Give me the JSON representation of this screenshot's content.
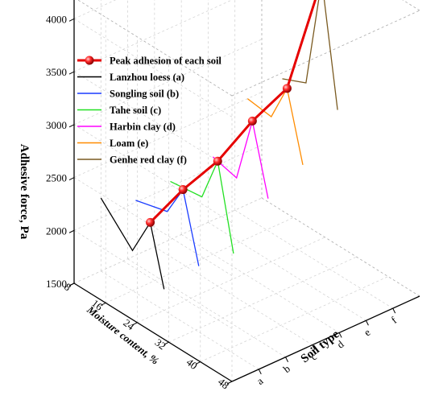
{
  "chart_data": {
    "type": "line",
    "projection": "3d",
    "zlabel": "Adhesive force,  Pa",
    "xlabel": "Moisture content,  %",
    "ylabel": "Soil type",
    "z_ticks": [
      "1500",
      "2000",
      "2500",
      "3000",
      "3500",
      "4000"
    ],
    "x_ticks": [
      "8",
      "16",
      "24",
      "32",
      "40",
      "48"
    ],
    "y_ticks": [
      "a",
      "b",
      "c",
      "d",
      "e",
      "f"
    ],
    "zlim": [
      1500,
      4200
    ],
    "xlim": [
      8,
      48
    ],
    "legend_position": "top-left",
    "colors": {
      "peak": "#e60000",
      "a": "#000000",
      "b": "#1a3cff",
      "c": "#22e022",
      "d": "#ff00ff",
      "e": "#ff8c00",
      "f": "#7a5a20"
    },
    "series": [
      {
        "name": "Peak adhesion of each soil",
        "soil": [
          "a",
          "b",
          "c",
          "d",
          "e",
          "f"
        ],
        "moisture": [
          20.5,
          22,
          24,
          26,
          28,
          30
        ],
        "values": [
          2250,
          2480,
          2680,
          2990,
          3230,
          4190
        ]
      },
      {
        "name": "Lanzhou loess (a)",
        "soil": "a",
        "moisture": [
          8,
          16,
          20.5,
          24
        ],
        "values": [
          2190,
          1880,
          2250,
          1700
        ]
      },
      {
        "name": "Songling soil (b)",
        "soil": "b",
        "moisture": [
          10,
          18,
          22,
          26
        ],
        "values": [
          2100,
          2180,
          2480,
          1850
        ]
      },
      {
        "name": "Tahe soil (c)",
        "soil": "c",
        "moisture": [
          12,
          20,
          24,
          28
        ],
        "values": [
          2210,
          2250,
          2680,
          1900
        ]
      },
      {
        "name": "Harbin clay (d)",
        "soil": "d",
        "moisture": [
          16,
          22,
          26,
          30
        ],
        "values": [
          2420,
          2360,
          2990,
          2350
        ]
      },
      {
        "name": "Loam (e)",
        "soil": "e",
        "moisture": [
          18,
          24,
          28,
          32
        ],
        "values": [
          2900,
          2870,
          3230,
          2600
        ]
      },
      {
        "name": "Genhe red clay (f)",
        "soil": "f",
        "moisture": [
          20,
          26,
          30,
          34
        ],
        "values": [
          3020,
          3120,
          4190,
          3050
        ]
      }
    ]
  }
}
